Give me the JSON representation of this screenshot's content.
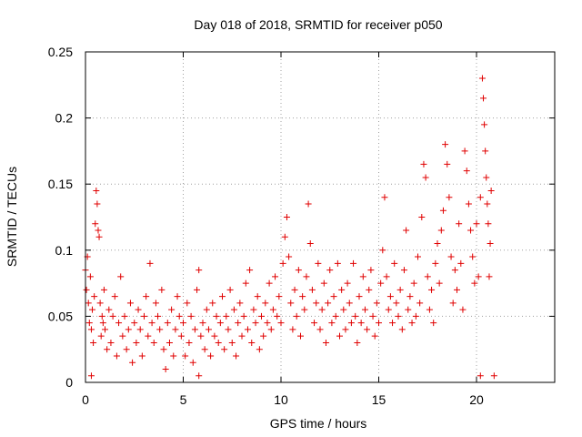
{
  "chart_data": {
    "type": "scatter",
    "title": "Day 018 of 2018, SRMTID for receiver p050",
    "xlabel": "GPS time / hours",
    "ylabel": "SRMTID / TECUs",
    "xlim": [
      0,
      24
    ],
    "ylim": [
      0,
      0.25
    ],
    "x_ticks": [
      0,
      5,
      10,
      15,
      20
    ],
    "x_tick_labels": [
      "0",
      "5",
      "10",
      "15",
      "20"
    ],
    "y_ticks": [
      0,
      0.05,
      0.1,
      0.15,
      0.2,
      0.25
    ],
    "y_tick_labels": [
      "0",
      "0.05",
      "0.1",
      "0.15",
      "0.2",
      "0.25"
    ],
    "grid": true,
    "marker": "+",
    "color": "#e00000",
    "series": [
      {
        "name": "SRMTID",
        "points": [
          [
            0.0,
            0.085
          ],
          [
            0.05,
            0.07
          ],
          [
            0.1,
            0.095
          ],
          [
            0.15,
            0.06
          ],
          [
            0.2,
            0.045
          ],
          [
            0.25,
            0.08
          ],
          [
            0.3,
            0.04
          ],
          [
            0.35,
            0.055
          ],
          [
            0.4,
            0.03
          ],
          [
            0.45,
            0.065
          ],
          [
            0.5,
            0.12
          ],
          [
            0.55,
            0.145
          ],
          [
            0.6,
            0.135
          ],
          [
            0.65,
            0.115
          ],
          [
            0.7,
            0.11
          ],
          [
            0.75,
            0.06
          ],
          [
            0.8,
            0.035
          ],
          [
            0.85,
            0.05
          ],
          [
            0.9,
            0.045
          ],
          [
            0.95,
            0.07
          ],
          [
            1.0,
            0.04
          ],
          [
            1.1,
            0.025
          ],
          [
            1.2,
            0.055
          ],
          [
            1.3,
            0.03
          ],
          [
            1.4,
            0.05
          ],
          [
            1.5,
            0.065
          ],
          [
            1.6,
            0.02
          ],
          [
            1.7,
            0.045
          ],
          [
            1.8,
            0.08
          ],
          [
            1.9,
            0.035
          ],
          [
            2.0,
            0.05
          ],
          [
            2.1,
            0.025
          ],
          [
            2.2,
            0.04
          ],
          [
            2.3,
            0.06
          ],
          [
            2.4,
            0.015
          ],
          [
            2.5,
            0.045
          ],
          [
            2.6,
            0.03
          ],
          [
            2.7,
            0.055
          ],
          [
            2.8,
            0.04
          ],
          [
            2.9,
            0.02
          ],
          [
            3.0,
            0.05
          ],
          [
            3.1,
            0.065
          ],
          [
            3.2,
            0.035
          ],
          [
            3.3,
            0.09
          ],
          [
            3.4,
            0.045
          ],
          [
            3.5,
            0.03
          ],
          [
            3.6,
            0.06
          ],
          [
            3.7,
            0.05
          ],
          [
            3.8,
            0.04
          ],
          [
            3.9,
            0.07
          ],
          [
            4.0,
            0.025
          ],
          [
            4.1,
            0.01
          ],
          [
            4.2,
            0.045
          ],
          [
            4.3,
            0.03
          ],
          [
            4.4,
            0.055
          ],
          [
            4.5,
            0.02
          ],
          [
            4.6,
            0.04
          ],
          [
            4.7,
            0.065
          ],
          [
            4.8,
            0.05
          ],
          [
            4.9,
            0.035
          ],
          [
            5.0,
            0.045
          ],
          [
            5.1,
            0.02
          ],
          [
            5.2,
            0.06
          ],
          [
            5.3,
            0.03
          ],
          [
            5.4,
            0.05
          ],
          [
            5.5,
            0.015
          ],
          [
            5.6,
            0.04
          ],
          [
            5.7,
            0.07
          ],
          [
            5.8,
            0.085
          ],
          [
            5.9,
            0.035
          ],
          [
            6.0,
            0.045
          ],
          [
            6.1,
            0.025
          ],
          [
            6.2,
            0.055
          ],
          [
            6.3,
            0.04
          ],
          [
            6.4,
            0.02
          ],
          [
            6.5,
            0.06
          ],
          [
            6.6,
            0.035
          ],
          [
            6.7,
            0.05
          ],
          [
            6.8,
            0.03
          ],
          [
            6.9,
            0.045
          ],
          [
            7.0,
            0.065
          ],
          [
            7.1,
            0.025
          ],
          [
            7.2,
            0.05
          ],
          [
            7.3,
            0.04
          ],
          [
            7.4,
            0.07
          ],
          [
            7.5,
            0.03
          ],
          [
            7.6,
            0.055
          ],
          [
            7.7,
            0.02
          ],
          [
            7.8,
            0.045
          ],
          [
            7.9,
            0.06
          ],
          [
            8.0,
            0.035
          ],
          [
            8.1,
            0.05
          ],
          [
            8.2,
            0.075
          ],
          [
            8.3,
            0.04
          ],
          [
            8.4,
            0.085
          ],
          [
            8.5,
            0.03
          ],
          [
            8.6,
            0.055
          ],
          [
            8.7,
            0.045
          ],
          [
            8.8,
            0.065
          ],
          [
            8.9,
            0.025
          ],
          [
            9.0,
            0.05
          ],
          [
            9.1,
            0.035
          ],
          [
            9.2,
            0.06
          ],
          [
            9.3,
            0.045
          ],
          [
            9.4,
            0.075
          ],
          [
            9.5,
            0.04
          ],
          [
            9.6,
            0.055
          ],
          [
            9.7,
            0.08
          ],
          [
            9.8,
            0.05
          ],
          [
            9.9,
            0.065
          ],
          [
            10.0,
            0.045
          ],
          [
            10.1,
            0.09
          ],
          [
            10.2,
            0.11
          ],
          [
            10.3,
            0.125
          ],
          [
            10.4,
            0.095
          ],
          [
            10.5,
            0.06
          ],
          [
            10.6,
            0.04
          ],
          [
            10.7,
            0.07
          ],
          [
            10.8,
            0.05
          ],
          [
            10.9,
            0.085
          ],
          [
            11.0,
            0.035
          ],
          [
            11.1,
            0.065
          ],
          [
            11.2,
            0.055
          ],
          [
            11.3,
            0.08
          ],
          [
            11.4,
            0.135
          ],
          [
            11.5,
            0.105
          ],
          [
            11.6,
            0.07
          ],
          [
            11.7,
            0.045
          ],
          [
            11.8,
            0.06
          ],
          [
            11.9,
            0.09
          ],
          [
            12.0,
            0.04
          ],
          [
            12.1,
            0.055
          ],
          [
            12.2,
            0.075
          ],
          [
            12.3,
            0.03
          ],
          [
            12.4,
            0.06
          ],
          [
            12.5,
            0.085
          ],
          [
            12.6,
            0.045
          ],
          [
            12.7,
            0.065
          ],
          [
            12.8,
            0.05
          ],
          [
            12.9,
            0.09
          ],
          [
            13.0,
            0.035
          ],
          [
            13.1,
            0.07
          ],
          [
            13.2,
            0.055
          ],
          [
            13.3,
            0.04
          ],
          [
            13.4,
            0.075
          ],
          [
            13.5,
            0.06
          ],
          [
            13.6,
            0.045
          ],
          [
            13.7,
            0.09
          ],
          [
            13.8,
            0.05
          ],
          [
            13.9,
            0.03
          ],
          [
            14.0,
            0.065
          ],
          [
            14.1,
            0.045
          ],
          [
            14.2,
            0.08
          ],
          [
            14.3,
            0.055
          ],
          [
            14.4,
            0.04
          ],
          [
            14.5,
            0.07
          ],
          [
            14.6,
            0.085
          ],
          [
            14.7,
            0.05
          ],
          [
            14.8,
            0.035
          ],
          [
            14.9,
            0.06
          ],
          [
            15.0,
            0.045
          ],
          [
            15.1,
            0.075
          ],
          [
            15.2,
            0.1
          ],
          [
            15.3,
            0.14
          ],
          [
            15.4,
            0.08
          ],
          [
            15.5,
            0.055
          ],
          [
            15.6,
            0.065
          ],
          [
            15.7,
            0.045
          ],
          [
            15.8,
            0.09
          ],
          [
            15.9,
            0.06
          ],
          [
            16.0,
            0.05
          ],
          [
            16.1,
            0.07
          ],
          [
            16.2,
            0.04
          ],
          [
            16.3,
            0.085
          ],
          [
            16.4,
            0.115
          ],
          [
            16.5,
            0.055
          ],
          [
            16.6,
            0.065
          ],
          [
            16.7,
            0.045
          ],
          [
            16.8,
            0.075
          ],
          [
            16.9,
            0.05
          ],
          [
            17.0,
            0.095
          ],
          [
            17.1,
            0.06
          ],
          [
            17.2,
            0.125
          ],
          [
            17.3,
            0.165
          ],
          [
            17.4,
            0.155
          ],
          [
            17.5,
            0.08
          ],
          [
            17.6,
            0.055
          ],
          [
            17.7,
            0.07
          ],
          [
            17.8,
            0.045
          ],
          [
            17.9,
            0.09
          ],
          [
            18.0,
            0.105
          ],
          [
            18.1,
            0.075
          ],
          [
            18.2,
            0.115
          ],
          [
            18.3,
            0.13
          ],
          [
            18.4,
            0.18
          ],
          [
            18.5,
            0.165
          ],
          [
            18.6,
            0.14
          ],
          [
            18.7,
            0.095
          ],
          [
            18.8,
            0.06
          ],
          [
            18.9,
            0.085
          ],
          [
            19.0,
            0.07
          ],
          [
            19.1,
            0.12
          ],
          [
            19.2,
            0.09
          ],
          [
            19.3,
            0.055
          ],
          [
            19.4,
            0.175
          ],
          [
            19.5,
            0.16
          ],
          [
            19.6,
            0.135
          ],
          [
            19.7,
            0.115
          ],
          [
            19.8,
            0.095
          ],
          [
            19.9,
            0.075
          ],
          [
            20.0,
            0.12
          ],
          [
            20.1,
            0.08
          ],
          [
            20.2,
            0.14
          ],
          [
            20.3,
            0.23
          ],
          [
            20.35,
            0.215
          ],
          [
            20.4,
            0.195
          ],
          [
            20.45,
            0.175
          ],
          [
            20.5,
            0.155
          ],
          [
            20.55,
            0.135
          ],
          [
            20.6,
            0.12
          ],
          [
            20.65,
            0.08
          ],
          [
            20.7,
            0.105
          ],
          [
            20.75,
            0.145
          ],
          [
            0.3,
            0.005
          ],
          [
            5.8,
            0.005
          ],
          [
            20.2,
            0.005
          ],
          [
            20.9,
            0.005
          ]
        ]
      }
    ]
  }
}
